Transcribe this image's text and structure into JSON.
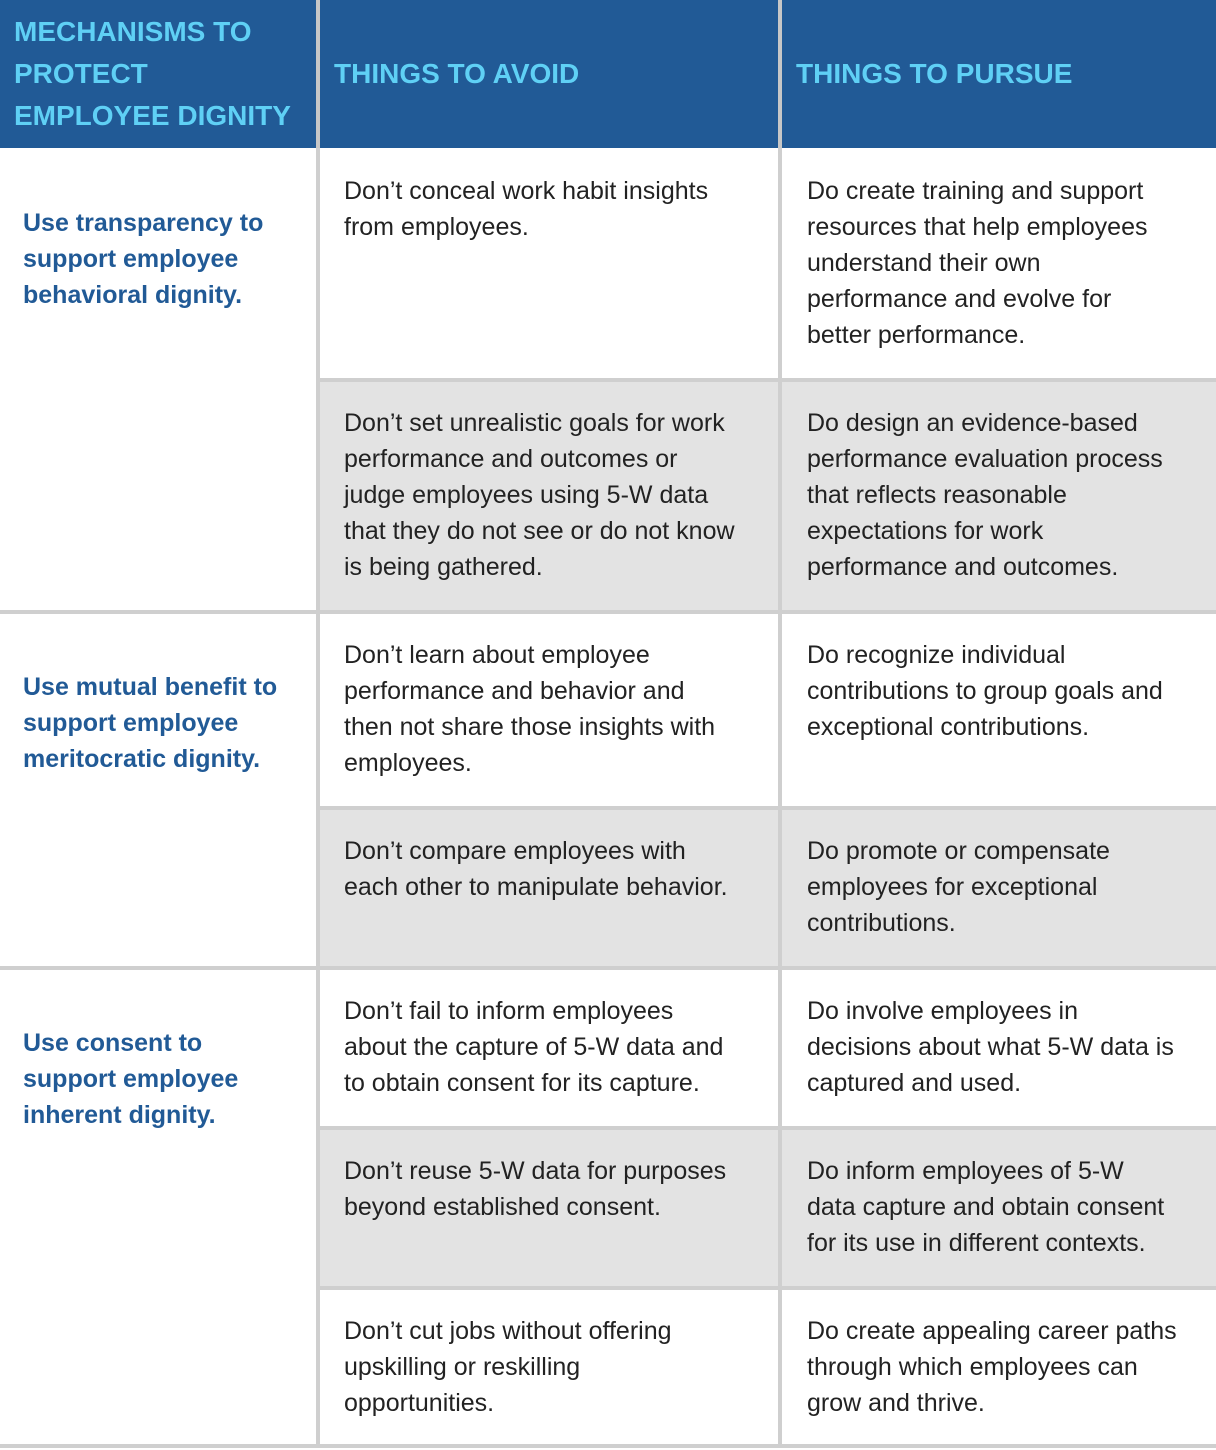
{
  "header": {
    "col1": [
      "MECHANISMS TO",
      "PROTECT",
      "EMPLOYEE DIGNITY"
    ],
    "col2": "THINGS TO AVOID",
    "col3": "THINGS TO PURSUE"
  },
  "groups": [
    {
      "mechanism": [
        "Use transparency to",
        "support employee",
        "behavioral dignity."
      ],
      "rows": [
        {
          "avoid": [
            "Don’t conceal work habit insights",
            "from employees."
          ],
          "pursue": [
            "Do create training and support",
            "resources that help employees",
            "understand their own",
            "performance and evolve for",
            "better performance."
          ]
        },
        {
          "avoid": [
            "Don’t set unrealistic goals for work",
            "performance and outcomes or",
            "judge employees using 5-W data",
            "that they do not see or do not know",
            "is being gathered."
          ],
          "pursue": [
            "Do design an evidence-based",
            "performance evaluation process",
            "that reflects reasonable",
            "expectations for work",
            "performance and outcomes."
          ]
        }
      ]
    },
    {
      "mechanism": [
        "Use mutual benefit to",
        "support employee",
        "meritocratic dignity."
      ],
      "rows": [
        {
          "avoid": [
            "Don’t learn about employee",
            "performance and behavior and",
            "then not share those insights with",
            "employees."
          ],
          "pursue": [
            "Do recognize individual",
            "contributions to group goals and",
            "exceptional contributions."
          ]
        },
        {
          "avoid": [
            "Don’t compare employees with",
            "each other to manipulate behavior."
          ],
          "pursue": [
            "Do promote or compensate",
            "employees for exceptional",
            "contributions."
          ]
        }
      ]
    },
    {
      "mechanism": [
        "Use consent to",
        "support employee",
        "inherent dignity."
      ],
      "rows": [
        {
          "avoid": [
            "Don’t fail to inform employees",
            "about the capture of 5-W data and",
            "to obtain consent for its capture."
          ],
          "pursue": [
            "Do involve employees in",
            "decisions about what 5-W data is",
            "captured and used."
          ]
        },
        {
          "avoid": [
            "Don’t reuse 5-W data for purposes",
            "beyond established consent."
          ],
          "pursue": [
            "Do inform employees of 5-W",
            "data capture and obtain consent",
            "for its use in different contexts."
          ]
        },
        {
          "avoid": [
            "Don’t cut jobs without offering",
            "upskilling or reskilling",
            "opportunities."
          ],
          "pursue": [
            "Do create appealing career paths",
            "through which employees can",
            "grow and thrive."
          ]
        }
      ]
    }
  ]
}
